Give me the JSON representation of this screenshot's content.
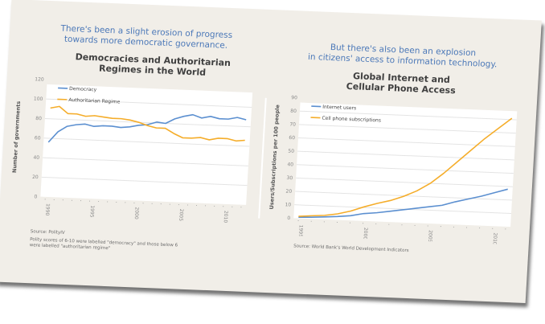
{
  "left_panel": {
    "headline_line1": "There's been a slight erosion of progress",
    "headline_line2": "towards more democratic governance.",
    "source": "Source: PolityIV",
    "note_line1": "Polity scores of 6-10 were labelled \"democracy\" and those below 6",
    "note_line2": "were labelled \"authoritarian regime\""
  },
  "right_panel": {
    "headline_line1": "But there's also been an explosion",
    "headline_line2": "in citizens' access to information technology.",
    "source": "Source: World Bank's World Development Indicators"
  },
  "colors": {
    "blue": "#5b8fd0",
    "orange": "#f5ad2a",
    "headline": "#4b78b8",
    "card": "#f1eee8"
  },
  "chart_data": [
    {
      "type": "line",
      "title_line1": "Democracies and Authoritarian",
      "title_line2": "Regimes in the World",
      "xlabel": "",
      "ylabel": "Number of governments",
      "ylim": [
        0,
        120
      ],
      "yticks": [
        0,
        20,
        40,
        60,
        80,
        100,
        120
      ],
      "xlim": [
        1990,
        2012
      ],
      "xticks": [
        1990,
        1995,
        2000,
        2005,
        2010
      ],
      "grid": true,
      "legend": "top-left",
      "x": [
        1990,
        1991,
        1992,
        1993,
        1994,
        1995,
        1996,
        1997,
        1998,
        1999,
        2000,
        2001,
        2002,
        2003,
        2004,
        2005,
        2006,
        2007,
        2008,
        2009,
        2010,
        2011,
        2012
      ],
      "series": [
        {
          "name": "Democracy",
          "color": "#5b8fd0",
          "values": [
            56,
            67,
            73,
            75,
            76,
            74,
            75,
            75,
            74,
            75,
            77,
            78,
            81,
            80,
            85,
            88,
            90,
            87,
            89,
            87,
            87,
            89,
            87
          ]
        },
        {
          "name": "Authoritarian Regime",
          "color": "#f5ad2a",
          "values": [
            91,
            93,
            86,
            86,
            84,
            85,
            84,
            83,
            83,
            82,
            80,
            77,
            75,
            75,
            70,
            66,
            66,
            67,
            65,
            67,
            67,
            65,
            66
          ]
        }
      ]
    },
    {
      "type": "line",
      "title_line1": "Global Internet and",
      "title_line2": "Cellular Phone Access",
      "xlabel": "",
      "ylabel": "Users/Subscriptions per 100 people",
      "ylim": [
        0,
        90
      ],
      "yticks": [
        0,
        10,
        20,
        30,
        40,
        50,
        60,
        70,
        80,
        90
      ],
      "xlim": [
        1995,
        2011
      ],
      "xticks": [
        1995,
        2000,
        2005,
        2010
      ],
      "grid": true,
      "legend": "top-left",
      "x": [
        1995,
        1996,
        1997,
        1998,
        1999,
        2000,
        2001,
        2002,
        2003,
        2004,
        2005,
        2006,
        2007,
        2008,
        2009,
        2010,
        2011
      ],
      "series": [
        {
          "name": "Internet users",
          "color": "#5b8fd0",
          "values": [
            0.8,
            1.2,
            1.8,
            2.5,
            3.5,
            5.5,
            6.5,
            8,
            9.5,
            11,
            12.5,
            14,
            17,
            19.5,
            22,
            25,
            28
          ]
        },
        {
          "name": "Cell phone subscriptions",
          "color": "#f5ad2a",
          "values": [
            1.5,
            2.3,
            3,
            4.5,
            7,
            10.5,
            13.5,
            16,
            19.5,
            24,
            30,
            38,
            47,
            56,
            65,
            73,
            81
          ]
        }
      ]
    }
  ]
}
